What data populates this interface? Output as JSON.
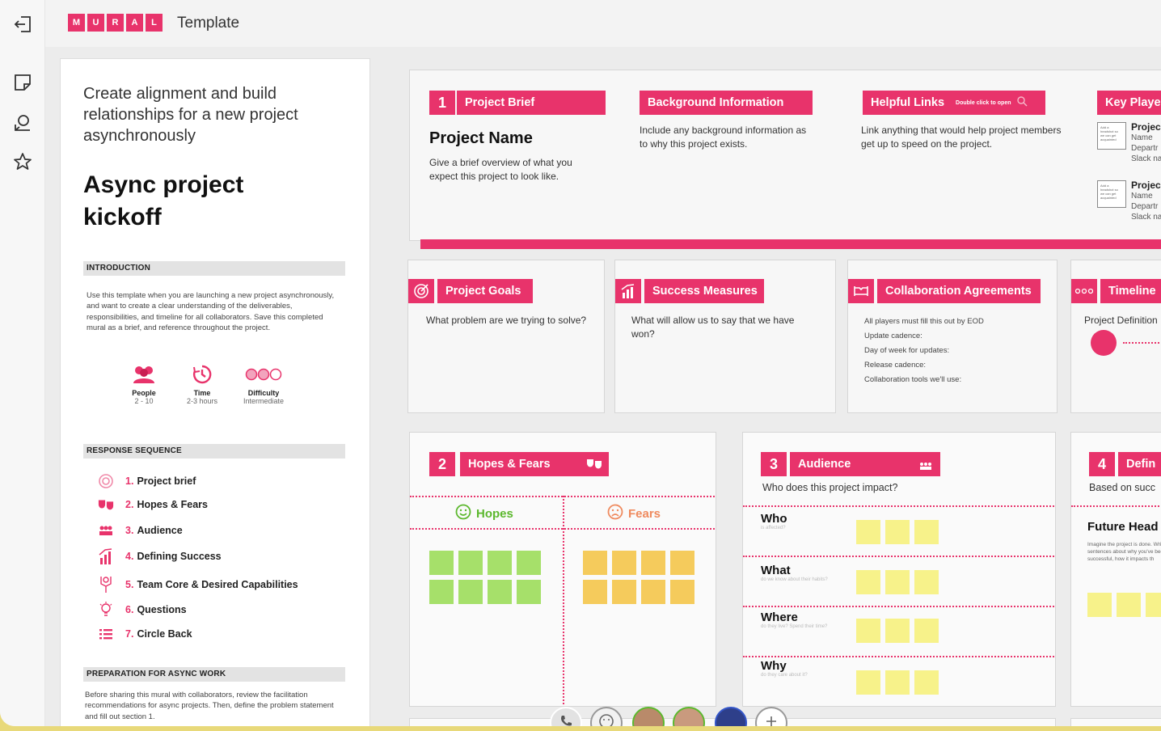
{
  "app": {
    "logo_letters": [
      "M",
      "U",
      "R",
      "A",
      "L"
    ],
    "template_label": "Template"
  },
  "rail": {
    "icons": [
      "exit-icon",
      "sticky-note-icon",
      "comment-icon",
      "star-icon"
    ]
  },
  "panel": {
    "subtitle": "Create alignment and build relationships for a new project asynchronously",
    "title": "Async project kickoff",
    "intro_header": "INTRODUCTION",
    "intro_text": "Use this template when you are launching a new project asynchronously, and want  to create a clear understanding of the deliverables, responsibilities, and timeline for all collaborators. Save this completed mural as a brief, and reference throughout the project.",
    "stats": [
      {
        "label": "People",
        "value": "2 - 10"
      },
      {
        "label": "Time",
        "value": "2-3 hours"
      },
      {
        "label": "Difficulty",
        "value": "Intermediate"
      }
    ],
    "sequence_header": "RESPONSE SEQUENCE",
    "sequence": [
      {
        "num": "1.",
        "label": "Project brief"
      },
      {
        "num": "2.",
        "label": "Hopes & Fears"
      },
      {
        "num": "3.",
        "label": "Audience"
      },
      {
        "num": "4.",
        "label": "Defining Success"
      },
      {
        "num": "5.",
        "label": "Team Core & Desired Capabilities"
      },
      {
        "num": "6.",
        "label": "Questions"
      },
      {
        "num": "7.",
        "label": "Circle Back"
      }
    ],
    "prep_header": "PREPARATION FOR ASYNC WORK",
    "prep_text": "Before sharing this mural with collaborators, review the facilitation recommendations for async projects. Then, define the problem statement and fill out section 1."
  },
  "brief": {
    "num": "1",
    "tag": "Project Brief",
    "project_name": "Project Name",
    "project_desc": "Give a brief overview of what you expect this project to look like.",
    "bg_tag": "Background Information",
    "bg_desc": "Include any background information as to why this project exists.",
    "links_tag": "Helpful Links",
    "links_hint": "Double click to open",
    "links_desc": "Link anything that would help project members get up to speed on the project.",
    "key_tag": "Key Playe",
    "key_cards": [
      {
        "title": "Projec",
        "lines": [
          "Name",
          "Departr",
          "Slack na"
        ],
        "placeholder": "Add a headshot so we can get acquainted"
      },
      {
        "title": "Projec",
        "lines": [
          "Name",
          "Departr",
          "Slack na"
        ],
        "placeholder": "Add a headshot so we can get acquainted"
      }
    ]
  },
  "goals": {
    "tag": "Project Goals",
    "desc": "What problem are we trying to solve?"
  },
  "success": {
    "tag": "Success Measures",
    "desc": "What will allow us to say that we have won?"
  },
  "collab": {
    "tag": "Collaboration Agreements",
    "lines": [
      "All players must fill this out by EOD",
      "Update cadence:",
      "Day of week for updates:",
      "Release cadence:",
      "Collaboration tools we'll use:"
    ]
  },
  "timeline": {
    "tag": "Timeline",
    "desc": "Project Definition"
  },
  "hopes": {
    "num": "2",
    "tag": "Hopes & Fears",
    "hopes_label": "Hopes",
    "fears_label": "Fears"
  },
  "audience": {
    "num": "3",
    "tag": "Audience",
    "desc": "Who does this project impact?",
    "rows": [
      {
        "label": "Who",
        "hint": "is affected?"
      },
      {
        "label": "What",
        "hint": "do we know about their habits?"
      },
      {
        "label": "Where",
        "hint": "do they live? Spend their time?"
      },
      {
        "label": "Why",
        "hint": "do they care about it?"
      }
    ]
  },
  "defining": {
    "num": "4",
    "tag": "Defin",
    "desc": "Based on succ",
    "heading": "Future Head",
    "text": "Imagine the project is done. Write a few sentences about why you've been successful, how it impacts th"
  },
  "colors": {
    "accent": "#e8336b",
    "hopes_green": "#a6e06a",
    "fears_yellow": "#f5cb5c",
    "audience_yellow": "#f7f28a"
  }
}
